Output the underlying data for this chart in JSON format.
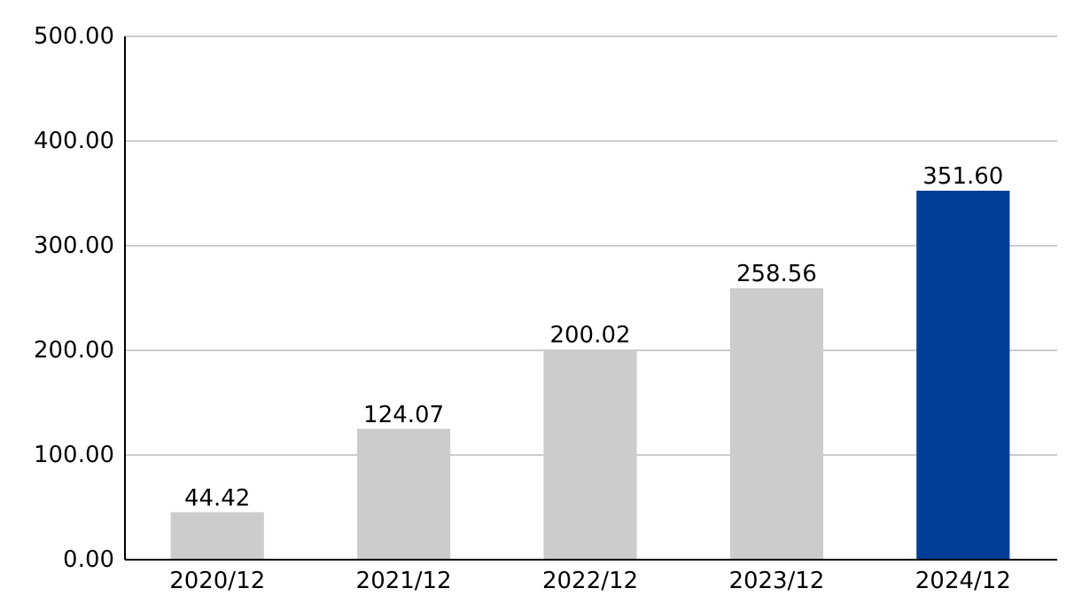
{
  "chart_data": {
    "type": "bar",
    "categories": [
      "2020/12",
      "2021/12",
      "2022/12",
      "2023/12",
      "2024/12"
    ],
    "values": [
      44.42,
      124.07,
      200.02,
      258.56,
      351.6
    ],
    "colors": [
      "#cccccc",
      "#cccccc",
      "#cccccc",
      "#cccccc",
      "#003f98"
    ],
    "value_labels": [
      "44.42",
      "124.07",
      "200.02",
      "258.56",
      "351.60"
    ],
    "ylim": [
      0,
      500
    ],
    "yticks": [
      {
        "value": 0,
        "label": "0.00"
      },
      {
        "value": 100,
        "label": "100.00"
      },
      {
        "value": 200,
        "label": "200.00"
      },
      {
        "value": 300,
        "label": "300.00"
      },
      {
        "value": 400,
        "label": "400.00"
      },
      {
        "value": 500,
        "label": "500.00"
      }
    ],
    "grid": "y",
    "legend": false
  }
}
